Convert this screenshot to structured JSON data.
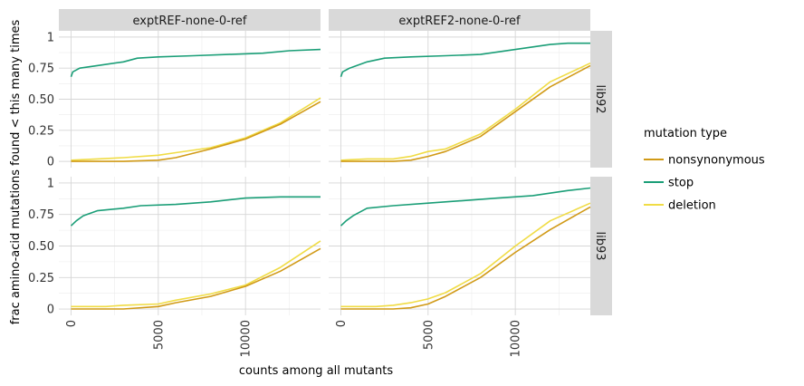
{
  "chart_data": {
    "type": "line",
    "xlabel": "counts among all mutants",
    "ylabel": "frac amino-acid mutations found < this many times",
    "xlim": [
      -700,
      14300
    ],
    "ylim": [
      -0.05,
      1.05
    ],
    "x_ticks": [
      0,
      5000,
      10000
    ],
    "y_ticks": [
      0,
      0.25,
      0.5,
      0.75,
      1
    ],
    "y_tick_labels": [
      "0",
      "0.25",
      "0.50",
      "0.75",
      "1"
    ],
    "grid": true,
    "legend": {
      "title": "mutation type",
      "position": "right",
      "entries": [
        {
          "name": "nonsynonymous",
          "color": "#d19a17"
        },
        {
          "name": "stop",
          "color": "#1a9e77"
        },
        {
          "name": "deletion",
          "color": "#f0dc45"
        }
      ]
    },
    "col_facets": [
      "exptREF-none-0-ref",
      "exptREF2-none-0-ref"
    ],
    "row_facets": [
      "lib92",
      "lib93"
    ],
    "panels": [
      {
        "col": 0,
        "row": 0,
        "series": [
          {
            "name": "nonsynonymous",
            "points": [
              [
                0,
                0
              ],
              [
                3000,
                0
              ],
              [
                5000,
                0.01
              ],
              [
                6000,
                0.03
              ],
              [
                8000,
                0.1
              ],
              [
                10000,
                0.18
              ],
              [
                12000,
                0.3
              ],
              [
                14300,
                0.48
              ]
            ]
          },
          {
            "name": "stop",
            "points": [
              [
                0,
                0.68
              ],
              [
                100,
                0.72
              ],
              [
                500,
                0.75
              ],
              [
                1500,
                0.77
              ],
              [
                3000,
                0.8
              ],
              [
                3800,
                0.83
              ],
              [
                5000,
                0.84
              ],
              [
                7000,
                0.85
              ],
              [
                9000,
                0.86
              ],
              [
                11000,
                0.87
              ],
              [
                12500,
                0.89
              ],
              [
                14300,
                0.9
              ]
            ]
          },
          {
            "name": "deletion",
            "points": [
              [
                0,
                0.01
              ],
              [
                1500,
                0.02
              ],
              [
                3000,
                0.03
              ],
              [
                5000,
                0.05
              ],
              [
                6000,
                0.07
              ],
              [
                8000,
                0.11
              ],
              [
                10000,
                0.19
              ],
              [
                12000,
                0.31
              ],
              [
                14300,
                0.51
              ]
            ]
          }
        ]
      },
      {
        "col": 1,
        "row": 0,
        "series": [
          {
            "name": "nonsynonymous",
            "points": [
              [
                0,
                0
              ],
              [
                3000,
                0
              ],
              [
                4000,
                0.01
              ],
              [
                5000,
                0.04
              ],
              [
                6000,
                0.08
              ],
              [
                8000,
                0.2
              ],
              [
                10000,
                0.4
              ],
              [
                12000,
                0.6
              ],
              [
                14300,
                0.77
              ]
            ]
          },
          {
            "name": "stop",
            "points": [
              [
                0,
                0.68
              ],
              [
                100,
                0.72
              ],
              [
                500,
                0.75
              ],
              [
                1500,
                0.8
              ],
              [
                2500,
                0.83
              ],
              [
                4000,
                0.84
              ],
              [
                6000,
                0.85
              ],
              [
                8000,
                0.86
              ],
              [
                10000,
                0.9
              ],
              [
                12000,
                0.94
              ],
              [
                13000,
                0.95
              ],
              [
                14300,
                0.95
              ]
            ]
          },
          {
            "name": "deletion",
            "points": [
              [
                0,
                0.01
              ],
              [
                1500,
                0.02
              ],
              [
                3000,
                0.02
              ],
              [
                4000,
                0.04
              ],
              [
                5000,
                0.08
              ],
              [
                6000,
                0.1
              ],
              [
                8000,
                0.22
              ],
              [
                10000,
                0.42
              ],
              [
                12000,
                0.64
              ],
              [
                14300,
                0.79
              ]
            ]
          }
        ]
      },
      {
        "col": 0,
        "row": 1,
        "series": [
          {
            "name": "nonsynonymous",
            "points": [
              [
                0,
                0
              ],
              [
                3000,
                0
              ],
              [
                5000,
                0.02
              ],
              [
                6000,
                0.05
              ],
              [
                8000,
                0.1
              ],
              [
                10000,
                0.18
              ],
              [
                12000,
                0.3
              ],
              [
                14300,
                0.48
              ]
            ]
          },
          {
            "name": "stop",
            "points": [
              [
                0,
                0.66
              ],
              [
                300,
                0.7
              ],
              [
                700,
                0.74
              ],
              [
                1500,
                0.78
              ],
              [
                3000,
                0.8
              ],
              [
                4000,
                0.82
              ],
              [
                6000,
                0.83
              ],
              [
                8000,
                0.85
              ],
              [
                10000,
                0.88
              ],
              [
                12000,
                0.89
              ],
              [
                14300,
                0.89
              ]
            ]
          },
          {
            "name": "deletion",
            "points": [
              [
                0,
                0.02
              ],
              [
                2000,
                0.02
              ],
              [
                3000,
                0.03
              ],
              [
                5000,
                0.04
              ],
              [
                6000,
                0.07
              ],
              [
                8000,
                0.12
              ],
              [
                10000,
                0.19
              ],
              [
                12000,
                0.33
              ],
              [
                14300,
                0.54
              ]
            ]
          }
        ]
      },
      {
        "col": 1,
        "row": 1,
        "series": [
          {
            "name": "nonsynonymous",
            "points": [
              [
                0,
                0
              ],
              [
                3000,
                0
              ],
              [
                4000,
                0.01
              ],
              [
                5000,
                0.04
              ],
              [
                6000,
                0.1
              ],
              [
                8000,
                0.25
              ],
              [
                10000,
                0.45
              ],
              [
                12000,
                0.63
              ],
              [
                14300,
                0.81
              ]
            ]
          },
          {
            "name": "stop",
            "points": [
              [
                0,
                0.66
              ],
              [
                300,
                0.7
              ],
              [
                700,
                0.74
              ],
              [
                1500,
                0.8
              ],
              [
                3000,
                0.82
              ],
              [
                5000,
                0.84
              ],
              [
                7000,
                0.86
              ],
              [
                9000,
                0.88
              ],
              [
                11000,
                0.9
              ],
              [
                13000,
                0.94
              ],
              [
                14300,
                0.96
              ]
            ]
          },
          {
            "name": "deletion",
            "points": [
              [
                0,
                0.02
              ],
              [
                2000,
                0.02
              ],
              [
                3000,
                0.03
              ],
              [
                4000,
                0.05
              ],
              [
                5000,
                0.08
              ],
              [
                6000,
                0.13
              ],
              [
                8000,
                0.28
              ],
              [
                10000,
                0.5
              ],
              [
                12000,
                0.7
              ],
              [
                14300,
                0.84
              ]
            ]
          }
        ]
      }
    ]
  }
}
